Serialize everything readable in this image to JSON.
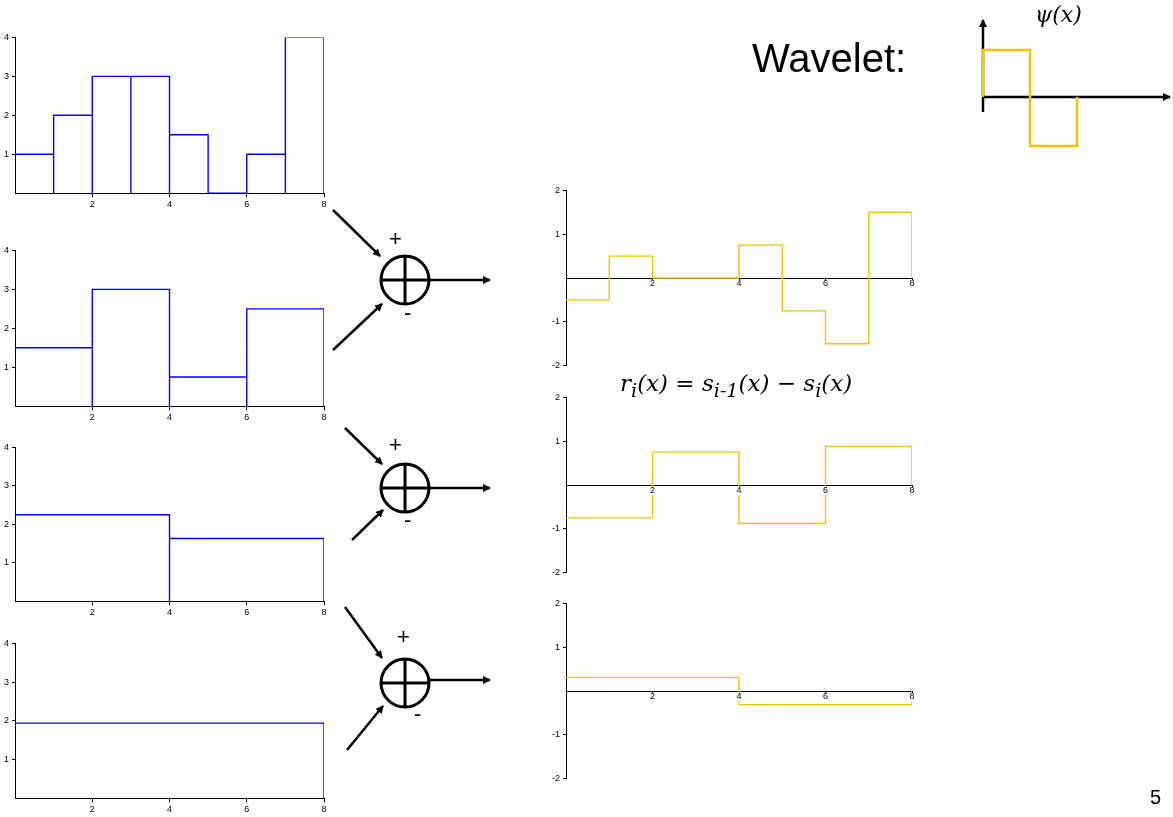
{
  "chart_data": [
    {
      "type": "line",
      "x": [
        0,
        1,
        1,
        1,
        2,
        2,
        2,
        3,
        3,
        3,
        4,
        4,
        4,
        5,
        5,
        6,
        6,
        7,
        7,
        7,
        8,
        8
      ],
      "values": [
        1,
        1,
        0,
        2,
        2,
        0,
        3,
        3,
        0,
        3,
        3,
        0,
        1.5,
        1.5,
        0,
        0,
        1,
        1,
        0,
        4,
        4,
        0
      ],
      "color": "#0000ff",
      "marker": "none",
      "xlim": [
        0,
        8
      ],
      "xticks": [
        2,
        4,
        6,
        8
      ],
      "ylim": [
        0,
        4
      ],
      "yticks": [
        1,
        2,
        3,
        4
      ],
      "grid": false
    },
    {
      "type": "line",
      "x": [
        0,
        2,
        2,
        2,
        4,
        4,
        4,
        6,
        6,
        6,
        8,
        8
      ],
      "values": [
        1.5,
        1.5,
        0,
        3,
        3,
        0,
        0.75,
        0.75,
        0,
        2.5,
        2.5,
        0
      ],
      "color": "#0000ff",
      "marker": "none",
      "xlim": [
        0,
        8
      ],
      "xticks": [
        2,
        4,
        6,
        8
      ],
      "ylim": [
        0,
        4
      ],
      "yticks": [
        1,
        2,
        3,
        4
      ],
      "grid": false
    },
    {
      "type": "line",
      "x": [
        0,
        4,
        4,
        4,
        8,
        8
      ],
      "values": [
        2.25,
        2.25,
        0,
        1.63,
        1.63,
        0
      ],
      "color": "#0000ff",
      "marker": "none",
      "xlim": [
        0,
        8
      ],
      "xticks": [
        2,
        4,
        6,
        8
      ],
      "ylim": [
        0,
        4
      ],
      "yticks": [
        1,
        2,
        3,
        4
      ],
      "grid": false
    },
    {
      "type": "line",
      "x": [
        0,
        8,
        8
      ],
      "values": [
        1.94,
        1.94,
        0
      ],
      "color": "#0000ff",
      "marker": "none",
      "xlim": [
        0,
        8
      ],
      "xticks": [
        2,
        4,
        6,
        8
      ],
      "ylim": [
        0,
        4
      ],
      "yticks": [
        1,
        2,
        3,
        4
      ],
      "grid": false
    },
    {
      "type": "line",
      "x": [
        0,
        1,
        1,
        2,
        2,
        4,
        4,
        5,
        5,
        6,
        6,
        7,
        7,
        8,
        8
      ],
      "values": [
        -0.5,
        -0.5,
        0.5,
        0.5,
        0,
        0,
        0.75,
        0.75,
        -0.75,
        -0.75,
        -1.5,
        -1.5,
        1.5,
        1.5,
        0
      ],
      "color": "#f5c400",
      "marker": "none",
      "xlim": [
        0,
        8
      ],
      "xticks": [
        2,
        4,
        6,
        8
      ],
      "ylim": [
        -2,
        2
      ],
      "yticks": [
        -2,
        -1,
        1,
        2
      ],
      "grid": false
    },
    {
      "type": "line",
      "x": [
        0,
        2,
        2,
        4,
        4,
        6,
        6,
        8,
        8
      ],
      "values": [
        -0.75,
        -0.75,
        0.75,
        0.75,
        -0.88,
        -0.88,
        0.88,
        0.88,
        0
      ],
      "color": "#f5c400",
      "marker": "none",
      "xlim": [
        0,
        8
      ],
      "xticks": [
        2,
        4,
        6,
        8
      ],
      "ylim": [
        -2,
        2
      ],
      "yticks": [
        -2,
        -1,
        1,
        2
      ],
      "grid": false
    },
    {
      "type": "line",
      "x": [
        0,
        4,
        4,
        8,
        8
      ],
      "values": [
        0.31,
        0.31,
        -0.31,
        -0.31,
        0
      ],
      "color": "#f5c400",
      "marker": "none",
      "xlim": [
        0,
        8
      ],
      "xticks": [
        2,
        4,
        6,
        8
      ],
      "ylim": [
        -2,
        2
      ],
      "yticks": [
        -2,
        -1,
        1,
        2
      ],
      "grid": false
    },
    {
      "type": "other",
      "annotations": [
        "Wavelet:",
        "r$_{i}$(x) = s$_{i-1}$(x) − s$_{i}$(x)",
        "+",
        "-",
        "+",
        "-",
        "+",
        "-",
        "5",
        "ψ(x)"
      ]
    }
  ]
}
